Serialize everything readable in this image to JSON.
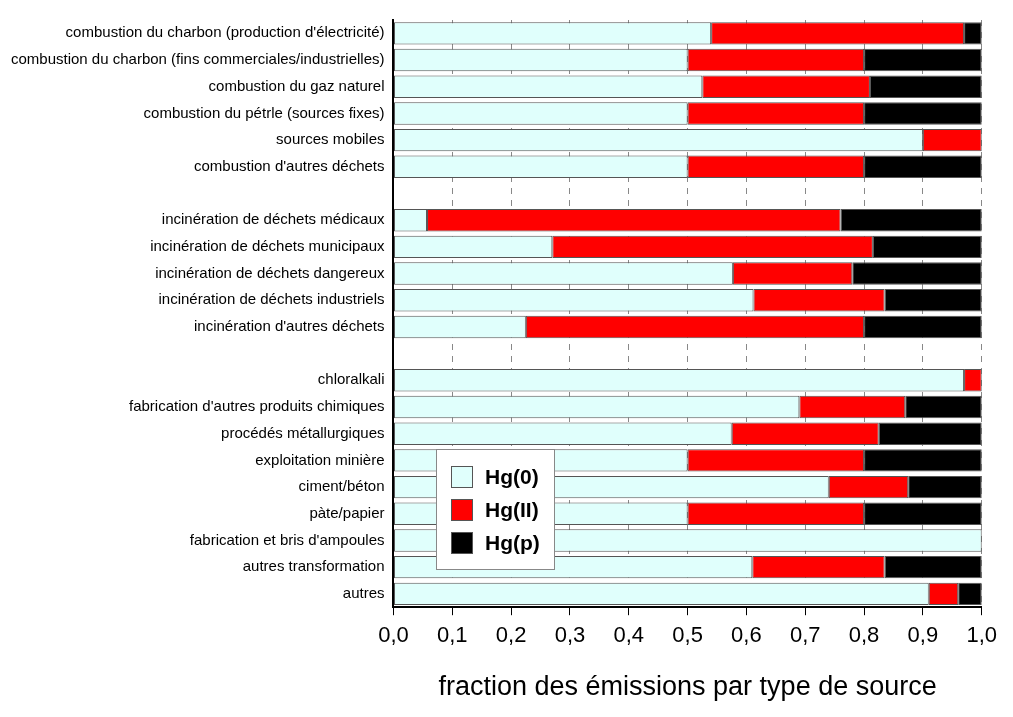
{
  "chart_data": {
    "type": "bar",
    "orientation": "horizontal",
    "stacked": true,
    "xlabel": "fraction des émissions par type de source",
    "categories": [
      "combustion du charbon (production d'électricité)",
      "combustion du charbon (fins commerciales/industrielles)",
      "combustion du gaz naturel",
      "combustion du pétrle (sources fixes)",
      "sources mobiles",
      "combustion d'autres déchets",
      null,
      "incinération de déchets médicaux",
      "incinération de déchets municipaux",
      "incinération de déchets dangereux",
      "incinération de déchets industriels",
      "incinération d'autres déchets",
      null,
      "chloralkali",
      "fabrication d'autres produits chimiques",
      "procédés métallurgiques",
      "exploitation minière",
      "ciment/béton",
      "pàte/papier",
      "fabrication et bris d'ampoules",
      "autres transformation",
      "autres"
    ],
    "series": [
      {
        "name": "Hg(0)",
        "color": "#e0fffc",
        "values": [
          0.54,
          0.5,
          0.525,
          0.5,
          0.9,
          0.5,
          null,
          0.057,
          0.27,
          0.577,
          0.612,
          0.225,
          null,
          0.97,
          0.69,
          0.575,
          0.5,
          0.74,
          0.5,
          1.0,
          0.61,
          0.91
        ]
      },
      {
        "name": "Hg(II)",
        "color": "#ff0000",
        "values": [
          0.43,
          0.3,
          0.285,
          0.3,
          0.1,
          0.3,
          null,
          0.703,
          0.545,
          0.203,
          0.223,
          0.575,
          null,
          0.03,
          0.18,
          0.25,
          0.3,
          0.135,
          0.3,
          0,
          0.225,
          0.05
        ]
      },
      {
        "name": "Hg(p)",
        "color": "#000000",
        "values": [
          0.03,
          0.2,
          0.19,
          0.2,
          0,
          0.2,
          null,
          0.24,
          0.185,
          0.22,
          0.165,
          0.2,
          null,
          0,
          0.13,
          0.175,
          0.2,
          0.125,
          0.2,
          0,
          0.165,
          0.04
        ]
      }
    ],
    "xlim": [
      0,
      1
    ],
    "xticks": [
      {
        "value": 0,
        "label": "0,0"
      },
      {
        "value": 0.1,
        "label": "0,1"
      },
      {
        "value": 0.2,
        "label": "0,2"
      },
      {
        "value": 0.3,
        "label": "0,3"
      },
      {
        "value": 0.4,
        "label": "0,4"
      },
      {
        "value": 0.5,
        "label": "0,5"
      },
      {
        "value": 0.6,
        "label": "0,6"
      },
      {
        "value": 0.7,
        "label": "0,7"
      },
      {
        "value": 0.8,
        "label": "0,8"
      },
      {
        "value": 0.9,
        "label": "0,9"
      },
      {
        "value": 1,
        "label": "1,0"
      }
    ],
    "grid": "x",
    "legend": "bottom left"
  }
}
